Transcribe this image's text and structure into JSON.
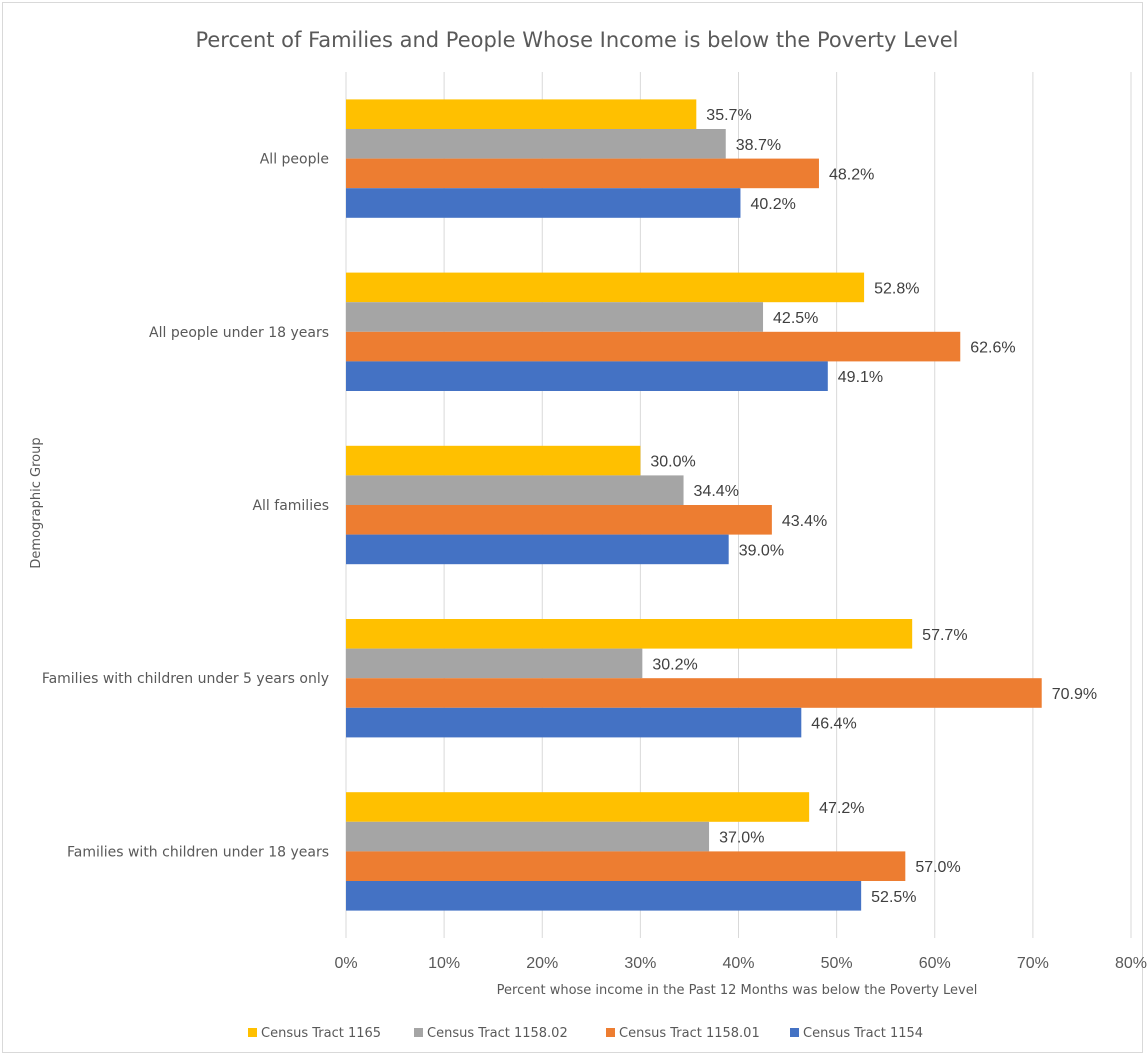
{
  "chart_data": {
    "type": "bar",
    "orientation": "horizontal",
    "title": "Percent of Families and People Whose Income is below the Poverty Level",
    "xlabel": "Percent whose income in the Past 12 Months was below the Poverty Level",
    "ylabel": "Demographic Group",
    "xlim": [
      0,
      80
    ],
    "x_ticks": [
      "0%",
      "10%",
      "20%",
      "30%",
      "40%",
      "50%",
      "60%",
      "70%",
      "80%"
    ],
    "grid": "vertical",
    "legend_position": "bottom",
    "categories": [
      "All people",
      "All people under 18 years",
      "All families",
      "Families with children under 5 years only",
      "Families with children under 18 years"
    ],
    "series": [
      {
        "name": "Census Tract 1165",
        "color": "#FFC000",
        "values": [
          35.7,
          52.8,
          30.0,
          57.7,
          47.2
        ],
        "labels": [
          "35.7%",
          "52.8%",
          "30.0%",
          "57.7%",
          "47.2%"
        ]
      },
      {
        "name": "Census Tract 1158.02",
        "color": "#A5A5A5",
        "values": [
          38.7,
          42.5,
          34.4,
          30.2,
          37.0
        ],
        "labels": [
          "38.7%",
          "42.5%",
          "34.4%",
          "30.2%",
          "37.0%"
        ]
      },
      {
        "name": "Census Tract 1158.01",
        "color": "#ED7D31",
        "values": [
          48.2,
          62.6,
          43.4,
          70.9,
          57.0
        ],
        "labels": [
          "48.2%",
          "62.6%",
          "43.4%",
          "70.9%",
          "57.0%"
        ]
      },
      {
        "name": "Census Tract 1154",
        "color": "#4472C4",
        "values": [
          40.2,
          49.1,
          39.0,
          46.4,
          52.5
        ],
        "labels": [
          "40.2%",
          "49.1%",
          "39.0%",
          "46.4%",
          "52.5%"
        ]
      }
    ]
  }
}
